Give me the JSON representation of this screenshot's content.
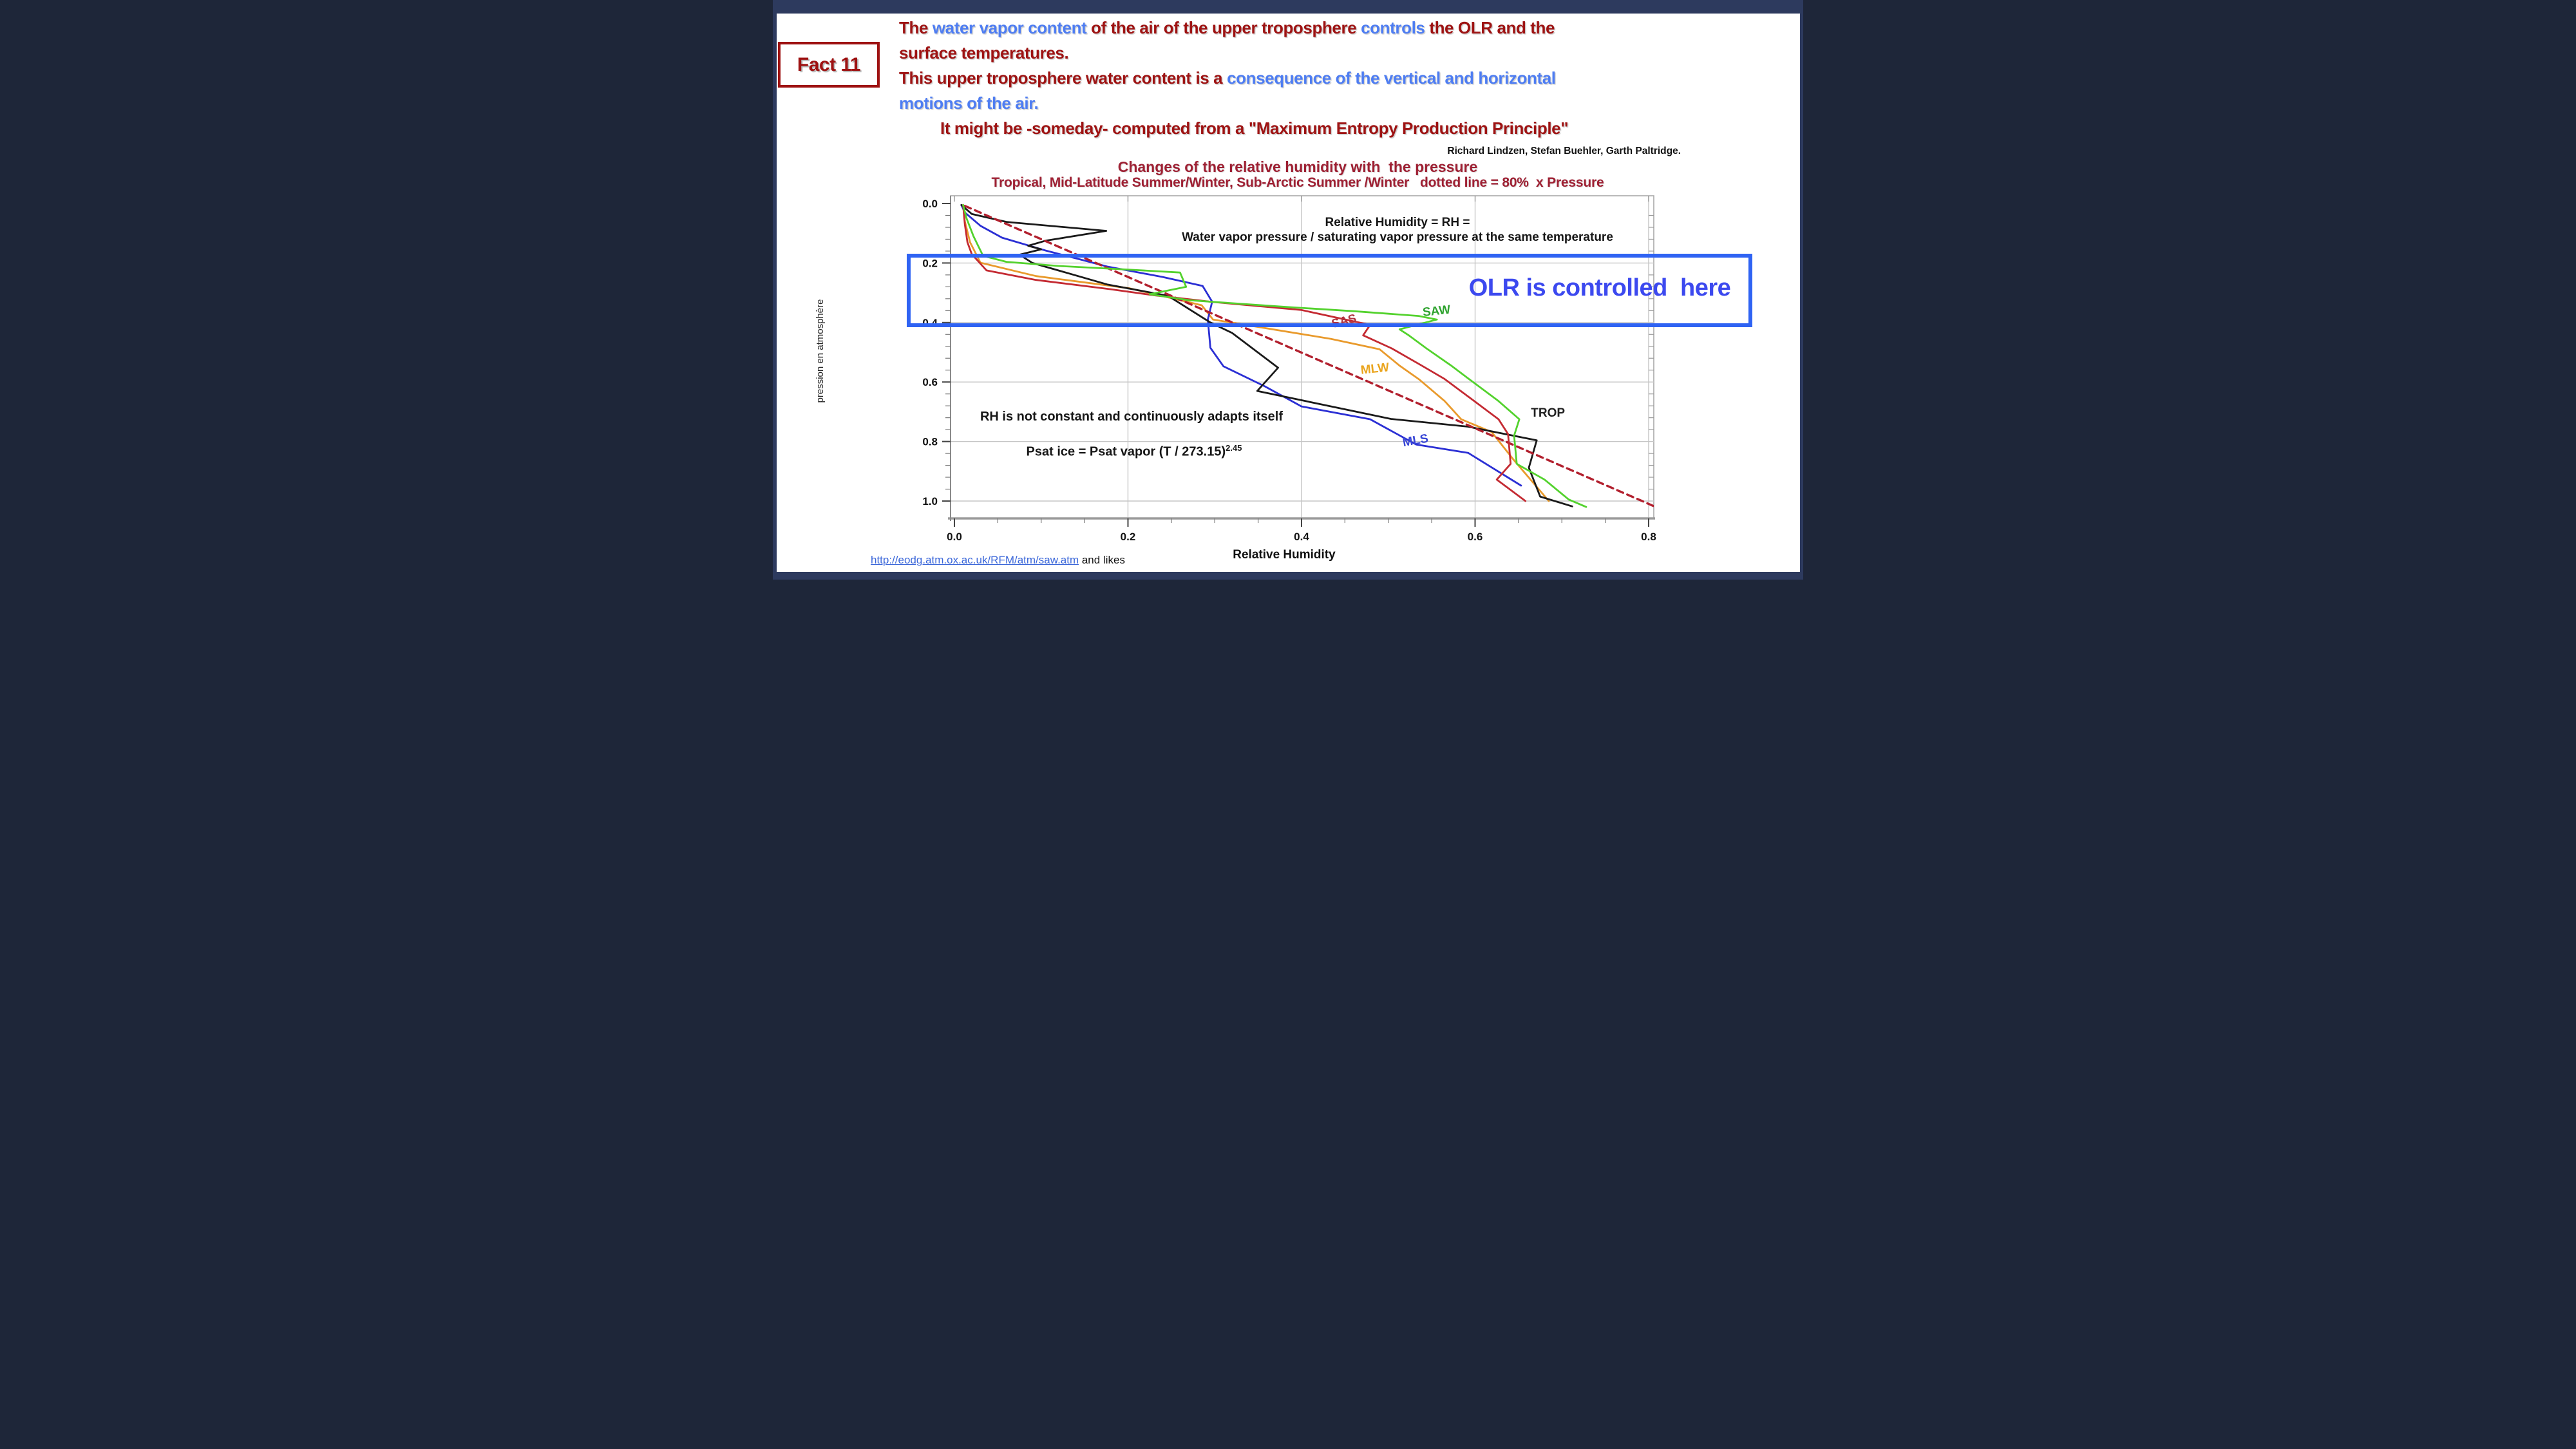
{
  "slide": {
    "fact_label": "Fact 11",
    "header": {
      "lines": [
        {
          "indent": false,
          "segments": [
            {
              "text": "The ",
              "color": "darkred"
            },
            {
              "text": "water vapor content ",
              "color": "blue"
            },
            {
              "text": "of the air of the upper troposphere ",
              "color": "darkred"
            },
            {
              "text": "controls ",
              "color": "blue"
            },
            {
              "text": "the OLR and the",
              "color": "darkred"
            }
          ]
        },
        {
          "indent": false,
          "segments": [
            {
              "text": "surface temperatures.",
              "color": "darkred"
            }
          ]
        },
        {
          "indent": false,
          "segments": [
            {
              "text": "This upper troposphere water content is a ",
              "color": "darkred"
            },
            {
              "text": "consequence of the vertical and horizontal",
              "color": "blue"
            }
          ]
        },
        {
          "indent": false,
          "segments": [
            {
              "text": "motions of the air.",
              "color": "blue"
            }
          ]
        },
        {
          "indent": true,
          "segments": [
            {
              "text": "It might be -someday- computed from a \"Maximum Entropy Production Principle\"",
              "color": "darkred"
            }
          ]
        }
      ],
      "attribution": "Richard Lindzen, Stefan Buehler, Garth Paltridge."
    },
    "olr_box_label": "OLR is controlled  here",
    "footer": {
      "link_text": "http://eodg.atm.ox.ac.uk/RFM/atm/saw.atm",
      "suffix": " and likes"
    },
    "colors": {
      "frame_navy": "#2d3a5e",
      "dark_red_text": "#9e1313",
      "blue_text": "#4e7df2",
      "title_maroon": "#9e2033",
      "olr_box_blue": "#2f63f3",
      "olr_text_blue": "#3c49ef"
    }
  },
  "chart_data": {
    "type": "line",
    "title": "Changes of the relative humidity with  the pressure",
    "subtitle": "Tropical, Mid-Latitude Summer/Winter, Sub-Arctic Summer /Winter   dotted line = 80%  x Pressure",
    "xlabel": "Relative Humidity",
    "ylabel": "pression en atmosphère",
    "xlim": [
      0,
      0.81
    ],
    "ylim": [
      0,
      1.05
    ],
    "y_axis_inverted_note": "pressure 0.0 at top, 1.0 at bottom",
    "grid": true,
    "x_tick_labels": [
      "0.0",
      "0.2",
      "0.4",
      "0.6",
      "0.8"
    ],
    "x_tick_values": [
      0,
      0.2,
      0.4,
      0.6,
      0.8
    ],
    "y_tick_labels": [
      "0.0",
      "0.2",
      "0.4",
      "0.6",
      "0.8",
      "1.0"
    ],
    "y_tick_values": [
      0,
      0.2,
      0.4,
      0.6,
      0.8,
      1.0
    ],
    "annotations": {
      "rh_definition_line1": "Relative Humidity = RH =",
      "rh_definition_line2": "Water vapor pressure / saturating vapor pressure at the same temperature",
      "rh_adapts": "RH is not constant and continuously adapts itself",
      "psat_formula_base": "Psat ice = Psat vapor (T / 273.15)",
      "psat_formula_exponent": "2.45"
    },
    "series": [
      {
        "name": "MLW",
        "color": "#e99a2c",
        "label_color": "#eaa41c",
        "dashed": false,
        "label_pos": [
          0.485,
          0.568
        ],
        "points": [
          [
            0.01,
            0.005
          ],
          [
            0.012,
            0.06
          ],
          [
            0.018,
            0.13
          ],
          [
            0.03,
            0.199
          ],
          [
            0.094,
            0.244
          ],
          [
            0.202,
            0.285
          ],
          [
            0.285,
            0.342
          ],
          [
            0.298,
            0.39
          ],
          [
            0.434,
            0.455
          ],
          [
            0.49,
            0.49
          ],
          [
            0.513,
            0.545
          ],
          [
            0.535,
            0.59
          ],
          [
            0.565,
            0.664
          ],
          [
            0.584,
            0.725
          ],
          [
            0.619,
            0.768
          ],
          [
            0.644,
            0.86
          ],
          [
            0.685,
            1.0
          ]
        ]
      },
      {
        "name": "MLS",
        "color": "#2b2fd4",
        "label_color": "#3947d6",
        "dashed": false,
        "label_pos": [
          0.532,
          0.809
        ],
        "points": [
          [
            0.008,
            0.005
          ],
          [
            0.012,
            0.03
          ],
          [
            0.03,
            0.075
          ],
          [
            0.055,
            0.115
          ],
          [
            0.105,
            0.158
          ],
          [
            0.145,
            0.188
          ],
          [
            0.176,
            0.212
          ],
          [
            0.24,
            0.247
          ],
          [
            0.286,
            0.277
          ],
          [
            0.297,
            0.33
          ],
          [
            0.292,
            0.39
          ],
          [
            0.295,
            0.485
          ],
          [
            0.31,
            0.547
          ],
          [
            0.358,
            0.615
          ],
          [
            0.4,
            0.682
          ],
          [
            0.479,
            0.725
          ],
          [
            0.532,
            0.81
          ],
          [
            0.592,
            0.838
          ],
          [
            0.653,
            0.948
          ]
        ]
      },
      {
        "name": "TROP",
        "color": "#1a1a1a",
        "label_color": "#222222",
        "dashed": false,
        "label_pos": [
          0.684,
          0.716
        ],
        "points": [
          [
            0.008,
            0.005
          ],
          [
            0.02,
            0.035
          ],
          [
            0.06,
            0.062
          ],
          [
            0.175,
            0.092
          ],
          [
            0.105,
            0.125
          ],
          [
            0.085,
            0.142
          ],
          [
            0.1,
            0.154
          ],
          [
            0.075,
            0.172
          ],
          [
            0.09,
            0.2
          ],
          [
            0.176,
            0.272
          ],
          [
            0.246,
            0.31
          ],
          [
            0.295,
            0.4
          ],
          [
            0.32,
            0.435
          ],
          [
            0.373,
            0.552
          ],
          [
            0.349,
            0.63
          ],
          [
            0.503,
            0.724
          ],
          [
            0.592,
            0.75
          ],
          [
            0.671,
            0.796
          ],
          [
            0.662,
            0.888
          ],
          [
            0.675,
            0.985
          ],
          [
            0.712,
            1.018
          ]
        ]
      },
      {
        "name": "80% x Pressure",
        "color": "#b2202e",
        "label_color": "#b2202e",
        "dashed": true,
        "label_pos": null,
        "points": [
          [
            0.012,
            0.008
          ],
          [
            0.82,
            1.035
          ]
        ]
      },
      {
        "name": "SAS",
        "color": "#c42a32",
        "label_color": "#b03340",
        "dashed": false,
        "label_pos": [
          0.45,
          0.408
        ],
        "points": [
          [
            0.01,
            0.005
          ],
          [
            0.012,
            0.07
          ],
          [
            0.015,
            0.13
          ],
          [
            0.02,
            0.17
          ],
          [
            0.037,
            0.225
          ],
          [
            0.094,
            0.257
          ],
          [
            0.18,
            0.288
          ],
          [
            0.229,
            0.308
          ],
          [
            0.295,
            0.33
          ],
          [
            0.4,
            0.358
          ],
          [
            0.479,
            0.408
          ],
          [
            0.471,
            0.443
          ],
          [
            0.504,
            0.487
          ],
          [
            0.538,
            0.544
          ],
          [
            0.565,
            0.59
          ],
          [
            0.599,
            0.664
          ],
          [
            0.627,
            0.725
          ],
          [
            0.638,
            0.775
          ],
          [
            0.641,
            0.875
          ],
          [
            0.625,
            0.928
          ],
          [
            0.658,
            1.0
          ]
        ]
      },
      {
        "name": "SAW",
        "color": "#53d22d",
        "label_color": "#2fa32f",
        "dashed": false,
        "label_pos": [
          0.556,
          0.374
        ],
        "points": [
          [
            0.01,
            0.005
          ],
          [
            0.014,
            0.05
          ],
          [
            0.022,
            0.11
          ],
          [
            0.033,
            0.176
          ],
          [
            0.06,
            0.196
          ],
          [
            0.12,
            0.21
          ],
          [
            0.2,
            0.222
          ],
          [
            0.26,
            0.232
          ],
          [
            0.267,
            0.28
          ],
          [
            0.225,
            0.305
          ],
          [
            0.27,
            0.325
          ],
          [
            0.384,
            0.348
          ],
          [
            0.46,
            0.362
          ],
          [
            0.535,
            0.378
          ],
          [
            0.556,
            0.39
          ],
          [
            0.513,
            0.423
          ],
          [
            0.524,
            0.444
          ],
          [
            0.544,
            0.487
          ],
          [
            0.572,
            0.544
          ],
          [
            0.593,
            0.59
          ],
          [
            0.627,
            0.664
          ],
          [
            0.651,
            0.725
          ],
          [
            0.645,
            0.78
          ],
          [
            0.648,
            0.875
          ],
          [
            0.68,
            0.928
          ],
          [
            0.708,
            0.995
          ],
          [
            0.728,
            1.02
          ]
        ]
      }
    ],
    "legend_position": "labels drawn next to curves inside plot"
  }
}
